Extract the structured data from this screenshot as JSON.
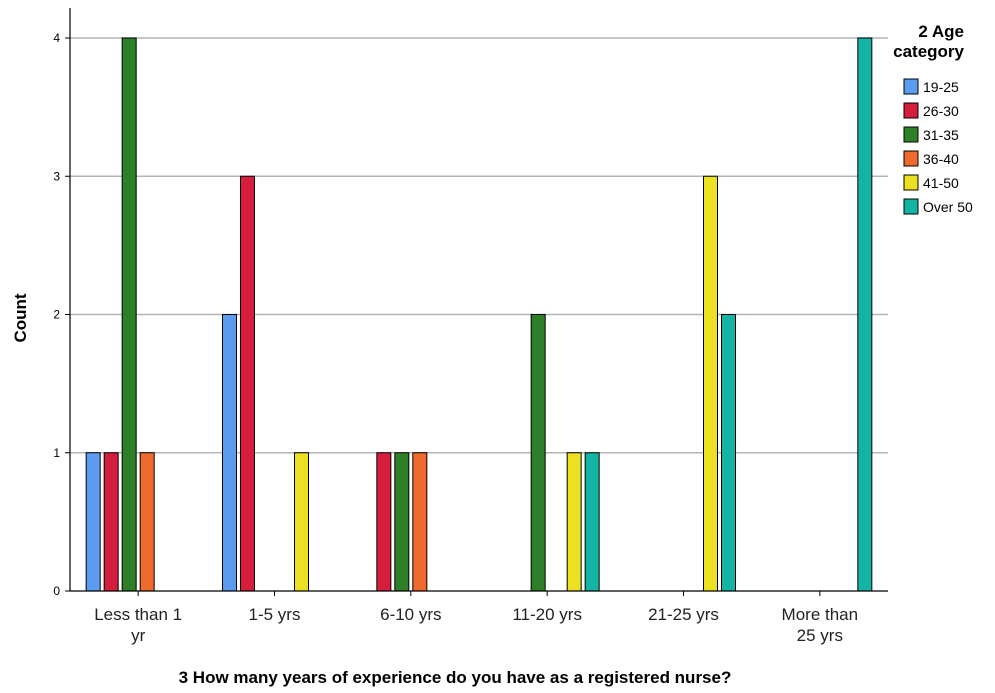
{
  "chart_data": {
    "type": "bar",
    "xlabel": "3 How many years of experience do you have as a registered nurse?",
    "ylabel": "Count",
    "ylim": [
      0,
      4
    ],
    "yticks": [
      "0",
      "1",
      "2",
      "3",
      "4"
    ],
    "grid": true,
    "legend_position": "right",
    "legend_title": [
      "2 Age",
      "category"
    ],
    "categories": [
      [
        "Less than 1",
        "yr"
      ],
      [
        "1-5 yrs"
      ],
      [
        "6-10 yrs"
      ],
      [
        "11-20 yrs"
      ],
      [
        "21-25 yrs"
      ],
      [
        "More than",
        "25 yrs"
      ]
    ],
    "series": [
      {
        "name": "19-25",
        "color": "#5b9bf0",
        "values": [
          1,
          2,
          0,
          0,
          0,
          0
        ]
      },
      {
        "name": "26-30",
        "color": "#d41e3c",
        "values": [
          1,
          3,
          1,
          0,
          0,
          0
        ]
      },
      {
        "name": "31-35",
        "color": "#2e8028",
        "values": [
          4,
          0,
          1,
          2,
          0,
          0
        ]
      },
      {
        "name": "36-40",
        "color": "#f0692d",
        "values": [
          1,
          0,
          1,
          0,
          0,
          0
        ]
      },
      {
        "name": "41-50",
        "color": "#ebe122",
        "values": [
          0,
          1,
          0,
          1,
          3,
          0
        ]
      },
      {
        "name": "Over 50",
        "color": "#14b4a5",
        "values": [
          0,
          0,
          0,
          1,
          2,
          4
        ]
      }
    ]
  }
}
